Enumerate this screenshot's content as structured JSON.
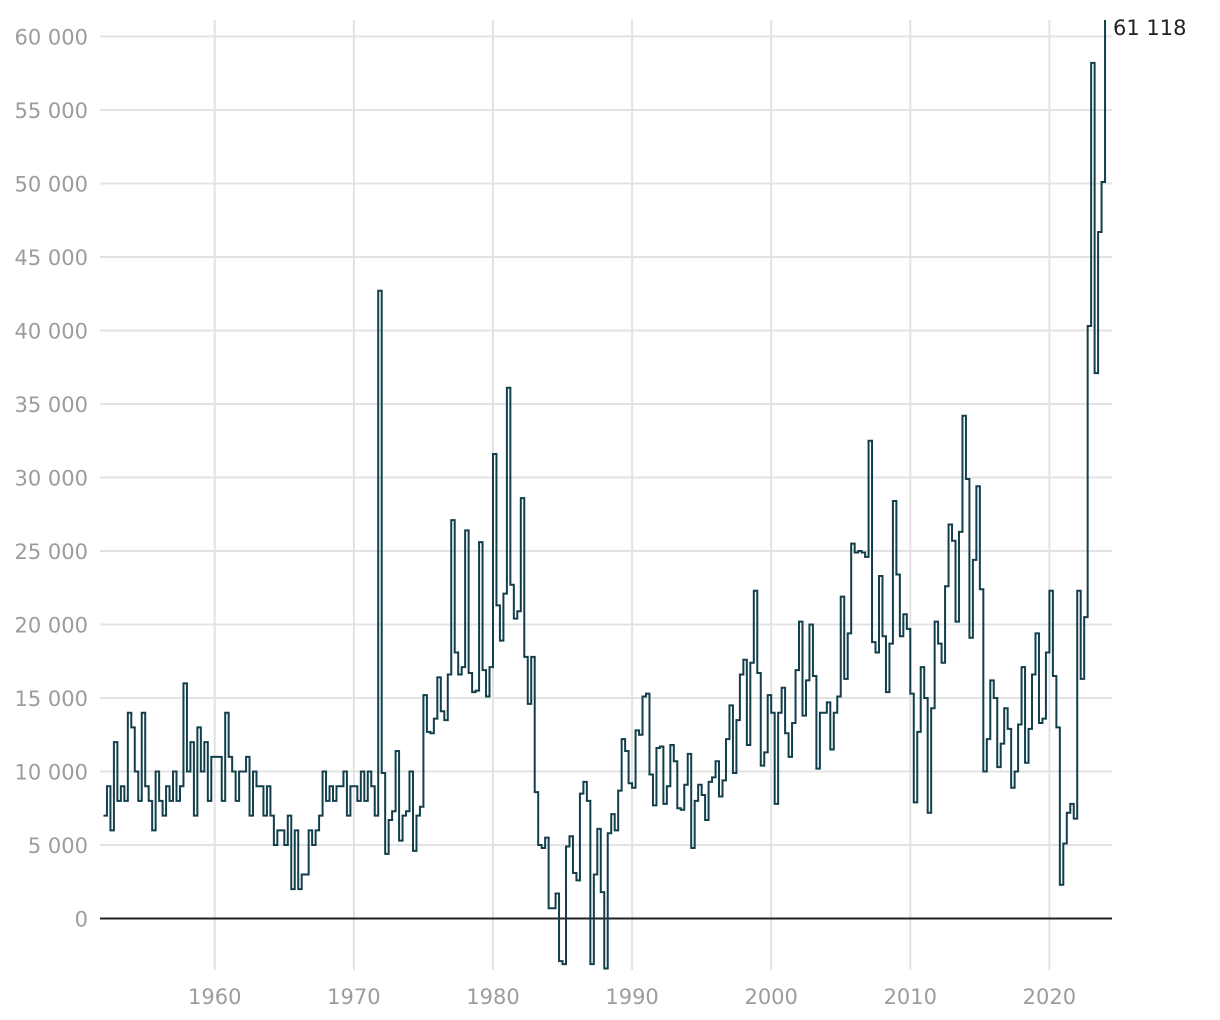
{
  "chart_data": {
    "type": "line",
    "step": true,
    "grid": "both",
    "ylim": [
      -3500,
      61118
    ],
    "xlim": [
      1951.75,
      2024.5
    ],
    "y_ticks": [
      0,
      5000,
      10000,
      15000,
      20000,
      25000,
      30000,
      35000,
      40000,
      45000,
      50000,
      55000,
      60000
    ],
    "y_tick_labels": [
      "0",
      "5 000",
      "10 000",
      "15 000",
      "20 000",
      "25 000",
      "30 000",
      "35 000",
      "40 000",
      "45 000",
      "50 000",
      "55 000",
      "60 000"
    ],
    "x_ticks": [
      1960,
      1970,
      1980,
      1990,
      2000,
      2010,
      2020
    ],
    "x_tick_labels": [
      "1960",
      "1970",
      "1980",
      "1990",
      "2000",
      "2010",
      "2020"
    ],
    "end_label": "61 118",
    "line_color": "#123f4b",
    "series": [
      {
        "frequency": "quarterly",
        "start": 1952.0,
        "values": [
          7000,
          9000,
          6000,
          12000,
          8000,
          9000,
          8000,
          14000,
          13000,
          10000,
          8000,
          14000,
          9000,
          8000,
          6000,
          10000,
          8000,
          7000,
          9000,
          8000,
          10000,
          8000,
          9000,
          16000,
          10000,
          12000,
          7000,
          13000,
          10000,
          12000,
          8000,
          11000,
          11000,
          11000,
          8000,
          14000,
          11000,
          10000,
          8000,
          10000,
          10000,
          11000,
          7000,
          10000,
          9000,
          9000,
          7000,
          9000,
          7000,
          5000,
          6000,
          6000,
          5000,
          7000,
          2000,
          6000,
          2000,
          3000,
          3000,
          6000,
          5000,
          6000,
          7000,
          10000,
          8000,
          9000,
          8000,
          9000,
          9000,
          10000,
          7000,
          9000,
          9000,
          8000,
          10000,
          8000,
          10000,
          9000,
          7000,
          42700,
          9900,
          4400,
          6700,
          7300,
          11400,
          5300,
          7000,
          7300,
          10000,
          4600,
          7000,
          7600,
          15200,
          12700,
          12600,
          13600,
          16400,
          14100,
          13500,
          16600,
          27100,
          18100,
          16600,
          17100,
          26400,
          16700,
          15400,
          15500,
          25600,
          16900,
          15100,
          17100,
          31600,
          21300,
          18900,
          22100,
          36100,
          22700,
          20400,
          20900,
          28600,
          17800,
          14600,
          17800,
          8600,
          5000,
          4800,
          5500,
          700,
          700,
          1700,
          -2900,
          -3100,
          4900,
          5600,
          3100,
          2600,
          8500,
          9300,
          8000,
          -3100,
          3000,
          6100,
          1800,
          -3400,
          5800,
          7100,
          6000,
          8700,
          12200,
          11400,
          9200,
          8900,
          12800,
          12500,
          15100,
          15300,
          9800,
          7700,
          11600,
          11700,
          7800,
          9000,
          11800,
          10700,
          7500,
          7400,
          9100,
          11200,
          4800,
          8000,
          9100,
          8400,
          6700,
          9300,
          9600,
          10700,
          8300,
          9400,
          12200,
          14500,
          9900,
          13500,
          16600,
          17600,
          11800,
          17400,
          22300,
          16700,
          10400,
          11300,
          15200,
          14000,
          7800,
          14000,
          15700,
          12600,
          11000,
          13300,
          16900,
          20200,
          13800,
          16200,
          20000,
          16500,
          10200,
          14000,
          14000,
          14700,
          11500,
          14000,
          15100,
          21900,
          16300,
          19400,
          25500,
          24900,
          25000,
          24900,
          24600,
          32500,
          18800,
          18100,
          23300,
          19200,
          15400,
          18700,
          28400,
          23400,
          19200,
          20700,
          19700,
          15300,
          7900,
          12700,
          17100,
          15000,
          7200,
          14300,
          20200,
          18700,
          17400,
          22600,
          26800,
          25700,
          20200,
          26300,
          34200,
          29900,
          19100,
          24400,
          29400,
          22400,
          10000,
          12200,
          16200,
          15000,
          10300,
          11900,
          14300,
          12900,
          8900,
          10000,
          13200,
          17100,
          10600,
          12900,
          16600,
          19400,
          13300,
          13600,
          18100,
          22300,
          16500,
          13000,
          2300,
          5100,
          7200,
          7800,
          6800,
          22300,
          16300,
          20500,
          40300,
          58200,
          37100,
          46700,
          50100,
          61118
        ]
      }
    ]
  }
}
